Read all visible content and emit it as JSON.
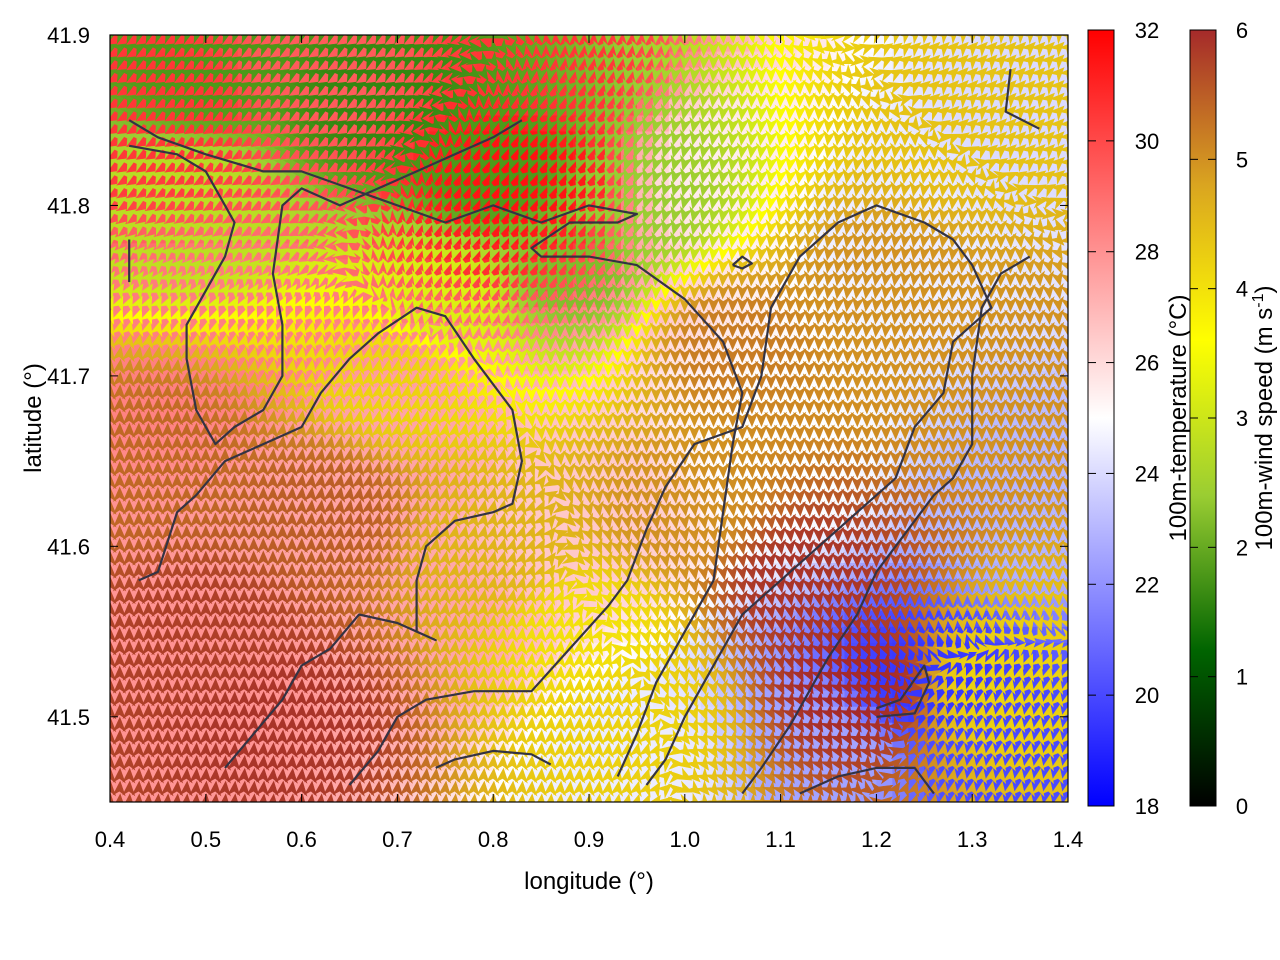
{
  "chart_data": {
    "type": "heatmap",
    "x_axis": {
      "label": "longitude (°)",
      "range": [
        0.4,
        1.4
      ],
      "ticks": [
        "0.4",
        "0.5",
        "0.6",
        "0.7",
        "0.8",
        "0.9",
        "1.0",
        "1.1",
        "1.2",
        "1.3",
        "1.4"
      ]
    },
    "y_axis": {
      "label": "latitude (°)",
      "range": [
        41.45,
        41.9
      ],
      "ticks": [
        "41.5",
        "41.6",
        "41.7",
        "41.8",
        "41.9"
      ]
    },
    "temperature_colorbar": {
      "label": "100m-temperature (°C)",
      "range": [
        18,
        32
      ],
      "ticks": [
        "18",
        "20",
        "22",
        "24",
        "26",
        "28",
        "30",
        "32"
      ],
      "colors": [
        "#0000ff",
        "#ffffff",
        "#ff0000"
      ]
    },
    "wind_colorbar": {
      "label_main": "100m-wind speed (m s",
      "label_sup": "-1",
      "label_end": ")",
      "range": [
        0,
        6
      ],
      "ticks": [
        "0",
        "1",
        "2",
        "3",
        "4",
        "5",
        "6"
      ],
      "colors": [
        "#000000",
        "#006400",
        "#9acd32",
        "#ffff00",
        "#daa520",
        "#a52a2a"
      ]
    },
    "temperature_hotspots": [
      {
        "lon": 0.45,
        "lat": 41.86,
        "temp": 30.5
      },
      {
        "lon": 0.62,
        "lat": 41.88,
        "temp": 29.5
      },
      {
        "lon": 0.83,
        "lat": 41.82,
        "temp": 31.5
      },
      {
        "lon": 0.86,
        "lat": 41.88,
        "temp": 30.5
      },
      {
        "lon": 0.52,
        "lat": 41.72,
        "temp": 28.5
      },
      {
        "lon": 0.5,
        "lat": 41.52,
        "temp": 28.0
      },
      {
        "lon": 0.72,
        "lat": 41.55,
        "temp": 27.5
      },
      {
        "lon": 0.68,
        "lat": 41.65,
        "temp": 27.5
      },
      {
        "lon": 1.05,
        "lat": 41.82,
        "temp": 25.5
      },
      {
        "lon": 1.2,
        "lat": 41.8,
        "temp": 24.5
      },
      {
        "lon": 1.35,
        "lat": 41.85,
        "temp": 24.0
      },
      {
        "lon": 1.25,
        "lat": 41.52,
        "temp": 19.5
      },
      {
        "lon": 1.32,
        "lat": 41.48,
        "temp": 20.0
      },
      {
        "lon": 1.35,
        "lat": 41.62,
        "temp": 23.0
      },
      {
        "lon": 1.15,
        "lat": 41.48,
        "temp": 22.5
      },
      {
        "lon": 0.95,
        "lat": 41.47,
        "temp": 24.5
      },
      {
        "lon": 0.9,
        "lat": 41.62,
        "temp": 26.5
      },
      {
        "lon": 1.1,
        "lat": 41.65,
        "temp": 25.0
      }
    ],
    "wind_field": {
      "grid_lon": [
        0.4,
        1.4,
        0.01
      ],
      "grid_lat": [
        41.45,
        41.9,
        0.0075
      ],
      "speed_hotspots": [
        {
          "lon": 0.5,
          "lat": 41.88,
          "speed": 1.8
        },
        {
          "lon": 0.68,
          "lat": 41.86,
          "speed": 1.6
        },
        {
          "lon": 0.8,
          "lat": 41.82,
          "speed": 1.8
        },
        {
          "lon": 0.88,
          "lat": 41.76,
          "speed": 2.2
        },
        {
          "lon": 0.95,
          "lat": 41.8,
          "speed": 2.4
        },
        {
          "lon": 0.48,
          "lat": 41.8,
          "speed": 2.8
        },
        {
          "lon": 0.75,
          "lat": 41.74,
          "speed": 3.2
        },
        {
          "lon": 0.5,
          "lat": 41.55,
          "speed": 5.8
        },
        {
          "lon": 0.58,
          "lat": 41.5,
          "speed": 5.9
        },
        {
          "lon": 0.45,
          "lat": 41.65,
          "speed": 5.4
        },
        {
          "lon": 0.8,
          "lat": 41.6,
          "speed": 4.6
        },
        {
          "lon": 0.9,
          "lat": 41.55,
          "speed": 4.0
        },
        {
          "lon": 0.95,
          "lat": 41.5,
          "speed": 4.2
        },
        {
          "lon": 1.0,
          "lat": 41.62,
          "speed": 5.0
        },
        {
          "lon": 1.12,
          "lat": 41.58,
          "speed": 5.9
        },
        {
          "lon": 1.18,
          "lat": 41.52,
          "speed": 6.0
        },
        {
          "lon": 1.05,
          "lat": 41.72,
          "speed": 5.2
        },
        {
          "lon": 1.2,
          "lat": 41.75,
          "speed": 5.0
        },
        {
          "lon": 1.3,
          "lat": 41.85,
          "speed": 4.4
        },
        {
          "lon": 1.33,
          "lat": 41.52,
          "speed": 4.2
        },
        {
          "lon": 1.35,
          "lat": 41.7,
          "speed": 5.0
        },
        {
          "lon": 0.7,
          "lat": 41.7,
          "speed": 4.2
        },
        {
          "lon": 0.62,
          "lat": 41.62,
          "speed": 5.5
        }
      ],
      "direction_zones": [
        {
          "lon": 0.5,
          "lat": 41.6,
          "dir_deg": 0
        },
        {
          "lon": 0.7,
          "lat": 41.65,
          "dir_deg": 10
        },
        {
          "lon": 0.6,
          "lat": 41.87,
          "dir_deg": 60
        },
        {
          "lon": 0.85,
          "lat": 41.8,
          "dir_deg": 200
        },
        {
          "lon": 0.95,
          "lat": 41.7,
          "dir_deg": 180
        },
        {
          "lon": 1.05,
          "lat": 41.55,
          "dir_deg": 170
        },
        {
          "lon": 1.15,
          "lat": 41.5,
          "dir_deg": 150
        },
        {
          "lon": 1.25,
          "lat": 41.6,
          "dir_deg": 180
        },
        {
          "lon": 1.3,
          "lat": 41.48,
          "dir_deg": 10
        },
        {
          "lon": 1.2,
          "lat": 41.8,
          "dir_deg": 190
        },
        {
          "lon": 1.35,
          "lat": 41.87,
          "dir_deg": 45
        },
        {
          "lon": 0.85,
          "lat": 41.5,
          "dir_deg": 5
        }
      ]
    },
    "contours": [
      {
        "name": "contour-north-loop",
        "points": [
          [
            0.42,
            41.85
          ],
          [
            0.45,
            41.84
          ],
          [
            0.5,
            41.83
          ],
          [
            0.56,
            41.82
          ],
          [
            0.6,
            41.82
          ],
          [
            0.65,
            41.81
          ],
          [
            0.7,
            41.8
          ],
          [
            0.75,
            41.79
          ],
          [
            0.8,
            41.8
          ],
          [
            0.85,
            41.79
          ],
          [
            0.9,
            41.8
          ],
          [
            0.95,
            41.795
          ],
          [
            0.93,
            41.79
          ],
          [
            0.88,
            41.79
          ],
          [
            0.84,
            41.775
          ],
          [
            0.85,
            41.77
          ],
          [
            0.9,
            41.77
          ],
          [
            0.95,
            41.765
          ],
          [
            1.0,
            41.745
          ],
          [
            1.04,
            41.72
          ],
          [
            1.06,
            41.69
          ],
          [
            1.05,
            41.66
          ],
          [
            1.04,
            41.62
          ],
          [
            1.03,
            41.58
          ],
          [
            1.0,
            41.55
          ],
          [
            0.97,
            41.52
          ],
          [
            0.95,
            41.49
          ],
          [
            0.93,
            41.465
          ]
        ]
      },
      {
        "name": "contour-west-loop",
        "points": [
          [
            0.42,
            41.835
          ],
          [
            0.47,
            41.83
          ],
          [
            0.5,
            41.82
          ],
          [
            0.52,
            41.8
          ],
          [
            0.53,
            41.79
          ],
          [
            0.52,
            41.77
          ],
          [
            0.5,
            41.75
          ],
          [
            0.48,
            41.73
          ],
          [
            0.48,
            41.71
          ],
          [
            0.49,
            41.68
          ],
          [
            0.51,
            41.66
          ],
          [
            0.53,
            41.67
          ],
          [
            0.56,
            41.68
          ],
          [
            0.58,
            41.7
          ],
          [
            0.58,
            41.73
          ],
          [
            0.57,
            41.76
          ],
          [
            0.58,
            41.8
          ],
          [
            0.6,
            41.81
          ],
          [
            0.64,
            41.8
          ],
          [
            0.68,
            41.81
          ],
          [
            0.72,
            41.82
          ],
          [
            0.76,
            41.83
          ],
          [
            0.8,
            41.84
          ],
          [
            0.83,
            41.85
          ]
        ]
      },
      {
        "name": "contour-central-valley",
        "points": [
          [
            0.43,
            41.58
          ],
          [
            0.45,
            41.585
          ],
          [
            0.47,
            41.62
          ],
          [
            0.49,
            41.63
          ],
          [
            0.52,
            41.65
          ],
          [
            0.56,
            41.66
          ],
          [
            0.6,
            41.67
          ],
          [
            0.62,
            41.69
          ],
          [
            0.65,
            41.71
          ],
          [
            0.68,
            41.725
          ],
          [
            0.72,
            41.74
          ],
          [
            0.75,
            41.735
          ],
          [
            0.78,
            41.71
          ],
          [
            0.82,
            41.68
          ],
          [
            0.83,
            41.65
          ],
          [
            0.82,
            41.625
          ],
          [
            0.8,
            41.62
          ],
          [
            0.76,
            41.615
          ],
          [
            0.73,
            41.6
          ],
          [
            0.72,
            41.58
          ],
          [
            0.72,
            41.55
          ],
          [
            0.74,
            41.545
          ],
          [
            0.7,
            41.555
          ],
          [
            0.66,
            41.56
          ],
          [
            0.63,
            41.54
          ],
          [
            0.6,
            41.53
          ],
          [
            0.58,
            41.51
          ],
          [
            0.55,
            41.49
          ],
          [
            0.52,
            41.47
          ]
        ]
      },
      {
        "name": "contour-south-loop",
        "points": [
          [
            0.65,
            41.46
          ],
          [
            0.68,
            41.48
          ],
          [
            0.7,
            41.5
          ],
          [
            0.73,
            41.51
          ],
          [
            0.78,
            41.515
          ],
          [
            0.84,
            41.515
          ],
          [
            0.88,
            41.54
          ],
          [
            0.92,
            41.565
          ],
          [
            0.94,
            41.58
          ],
          [
            0.96,
            41.61
          ],
          [
            0.98,
            41.635
          ],
          [
            1.01,
            41.66
          ],
          [
            1.06,
            41.67
          ],
          [
            1.08,
            41.7
          ],
          [
            1.09,
            41.74
          ],
          [
            1.12,
            41.77
          ],
          [
            1.16,
            41.79
          ],
          [
            1.2,
            41.8
          ],
          [
            1.25,
            41.79
          ],
          [
            1.28,
            41.78
          ],
          [
            1.3,
            41.765
          ],
          [
            1.32,
            41.74
          ],
          [
            1.28,
            41.72
          ],
          [
            1.27,
            41.69
          ],
          [
            1.24,
            41.67
          ],
          [
            1.22,
            41.64
          ],
          [
            1.18,
            41.62
          ],
          [
            1.14,
            41.6
          ],
          [
            1.1,
            41.58
          ],
          [
            1.06,
            41.56
          ],
          [
            1.03,
            41.53
          ],
          [
            1.0,
            41.5
          ],
          [
            0.98,
            41.475
          ],
          [
            0.96,
            41.46
          ]
        ]
      },
      {
        "name": "contour-east-ridge",
        "points": [
          [
            1.36,
            41.77
          ],
          [
            1.33,
            41.76
          ],
          [
            1.31,
            41.74
          ],
          [
            1.3,
            41.7
          ],
          [
            1.3,
            41.66
          ],
          [
            1.28,
            41.64
          ],
          [
            1.26,
            41.63
          ],
          [
            1.24,
            41.615
          ],
          [
            1.22,
            41.6
          ],
          [
            1.2,
            41.585
          ],
          [
            1.18,
            41.56
          ],
          [
            1.15,
            41.535
          ],
          [
            1.13,
            41.515
          ],
          [
            1.11,
            41.495
          ],
          [
            1.08,
            41.47
          ],
          [
            1.06,
            41.455
          ]
        ]
      },
      {
        "name": "contour-southwest-fragment",
        "points": [
          [
            0.74,
            41.47
          ],
          [
            0.76,
            41.475
          ],
          [
            0.8,
            41.48
          ],
          [
            0.84,
            41.478
          ],
          [
            0.86,
            41.472
          ]
        ]
      },
      {
        "name": "contour-southeast-lake",
        "points": [
          [
            1.2,
            41.5
          ],
          [
            1.24,
            41.502
          ],
          [
            1.255,
            41.52
          ],
          [
            1.25,
            41.53
          ],
          [
            1.225,
            41.51
          ],
          [
            1.2,
            41.505
          ]
        ]
      },
      {
        "name": "contour-southeast-bottom",
        "points": [
          [
            1.12,
            41.455
          ],
          [
            1.16,
            41.465
          ],
          [
            1.2,
            41.47
          ],
          [
            1.24,
            41.47
          ],
          [
            1.26,
            41.455
          ]
        ]
      },
      {
        "name": "contour-north-east",
        "points": [
          [
            1.34,
            41.88
          ],
          [
            1.335,
            41.855
          ],
          [
            1.37,
            41.845
          ]
        ]
      },
      {
        "name": "contour-northwest-notch",
        "points": [
          [
            0.42,
            41.78
          ],
          [
            0.42,
            41.755
          ]
        ]
      },
      {
        "name": "contour-ellipse",
        "points": [
          [
            1.05,
            41.765
          ],
          [
            1.06,
            41.77
          ],
          [
            1.07,
            41.766
          ],
          [
            1.06,
            41.763
          ],
          [
            1.05,
            41.765
          ]
        ]
      }
    ]
  }
}
